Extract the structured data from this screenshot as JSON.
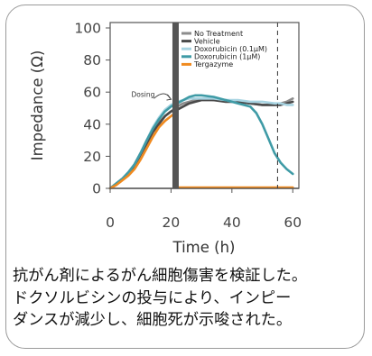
{
  "chart_data": {
    "type": "line",
    "title": "",
    "xlabel": "Time (h)",
    "ylabel": "Impedance (Ω)",
    "xlim": [
      0,
      62
    ],
    "ylim": [
      0,
      100
    ],
    "x_ticks": [
      "0",
      "20",
      "40",
      "60"
    ],
    "y_ticks": [
      "0",
      "20",
      "40",
      "60",
      "80",
      "100"
    ],
    "legend_position": "top-right",
    "annotation": "Dosing",
    "dosing_time": 21.5,
    "end_marker_time": 55,
    "series": [
      {
        "name": "No Treatment",
        "color": "#8c8c8c",
        "x": [
          0,
          2,
          4,
          6,
          8,
          10,
          12,
          14,
          16,
          18,
          20,
          22,
          24,
          26,
          28,
          30,
          34,
          38,
          42,
          46,
          50,
          54,
          56,
          58,
          60
        ],
        "y": [
          0,
          3,
          6,
          10,
          15,
          22,
          29,
          36,
          41,
          45,
          48,
          51,
          53,
          54,
          55,
          56,
          55,
          55,
          54,
          53,
          52,
          52,
          53,
          54,
          56
        ]
      },
      {
        "name": "Vehicle",
        "color": "#4a4a4a",
        "x": [
          0,
          2,
          4,
          6,
          8,
          10,
          12,
          14,
          16,
          18,
          20,
          22,
          24,
          26,
          28,
          30,
          34,
          38,
          42,
          46,
          50,
          54,
          56,
          58,
          60
        ],
        "y": [
          0,
          3,
          6,
          9,
          14,
          21,
          28,
          35,
          40,
          45,
          48,
          49,
          51,
          53,
          54,
          55,
          55,
          54,
          54,
          53,
          52,
          52,
          52,
          53,
          54
        ]
      },
      {
        "name": "Doxorubicin (0.1µM)",
        "color": "#a8d4e2",
        "x": [
          0,
          2,
          4,
          6,
          8,
          10,
          12,
          14,
          16,
          18,
          20,
          22,
          24,
          26,
          28,
          30,
          34,
          38,
          42,
          46,
          50,
          54,
          56,
          58,
          60
        ],
        "y": [
          0,
          3,
          6,
          10,
          15,
          22,
          30,
          38,
          44,
          49,
          52,
          54,
          55,
          56,
          56,
          56,
          56,
          55,
          55,
          54,
          54,
          53,
          53,
          52,
          52
        ]
      },
      {
        "name": "Doxorubicin (1µM)",
        "color": "#3f9ba6",
        "x": [
          0,
          2,
          4,
          6,
          8,
          10,
          12,
          14,
          16,
          18,
          20,
          22,
          24,
          26,
          28,
          30,
          34,
          38,
          42,
          46,
          48,
          50,
          52,
          54,
          56,
          58,
          60
        ],
        "y": [
          0,
          3,
          6,
          10,
          15,
          22,
          30,
          37,
          43,
          48,
          51,
          53,
          55,
          57,
          58,
          58,
          57,
          55,
          53,
          51,
          47,
          40,
          31,
          22,
          16,
          12,
          9
        ]
      },
      {
        "name": "Tergazyme",
        "color": "#f08a1f",
        "x": [
          0,
          2,
          4,
          6,
          8,
          10,
          12,
          14,
          16,
          18,
          20,
          21.4,
          21.6,
          24,
          30,
          40,
          50,
          60
        ],
        "y": [
          0,
          2,
          5,
          8,
          12,
          18,
          25,
          32,
          38,
          42,
          45,
          47,
          0.5,
          0.5,
          0.5,
          0.5,
          0.5,
          0.5
        ]
      }
    ]
  },
  "caption": {
    "lines": [
      "抗がん剤によるがん細胞傷害を検証した。",
      "ドクソルビシンの投与により、インピー",
      "ダンスが減少し、細胞死が示唆された。"
    ]
  }
}
